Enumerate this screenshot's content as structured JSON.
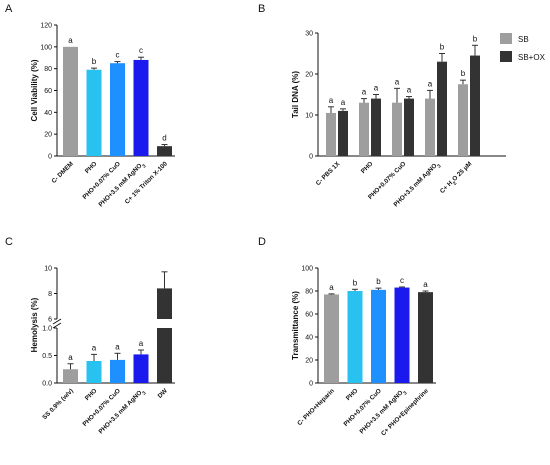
{
  "colors": {
    "gray": "#9e9e9e",
    "cyan": "#29c2f0",
    "sky": "#1e90ff",
    "blue": "#1a1aee",
    "dark": "#333333",
    "error": "#333333"
  },
  "chart_data": [
    {
      "panel": "A",
      "type": "bar",
      "ylabel": "Cell Viability (%)",
      "ylim": [
        0,
        120
      ],
      "yticks": [
        "0",
        "20",
        "40",
        "60",
        "80",
        "100",
        "120"
      ],
      "categories": [
        "C- DMEM",
        "PHO",
        "PHO+0.07% CuO",
        "PHO+3.5 mM AgNO3",
        "C+ 1% Triton X-100"
      ],
      "cat_html": [
        "C- DMEM",
        "PHO",
        "PHO+0.07% CuO",
        "PHO+3.5 mM AgNO<tspan baseline-shift='sub' font-size='5'>3</tspan>",
        "C+ 1% Triton X-100"
      ],
      "values": [
        100,
        79,
        85,
        88,
        9
      ],
      "errors": [
        0,
        1.5,
        1.5,
        2.5,
        1.5
      ],
      "letters": [
        "a",
        "b",
        "c",
        "c",
        "d"
      ],
      "colors": [
        "gray",
        "cyan",
        "sky",
        "blue",
        "dark"
      ]
    },
    {
      "panel": "B",
      "type": "grouped-bar",
      "ylabel": "Tail DNA (%)",
      "ylim": [
        0,
        30
      ],
      "yticks": [
        "0",
        "10",
        "20",
        "30"
      ],
      "categories": [
        "C- PBS 1X",
        "PHO",
        "PHO+0.07% CuO",
        "PHO+3.5 mM AgNO3",
        "C+ H2O 25 μM"
      ],
      "cat_html": [
        "C- PBS 1X",
        "PHO",
        "PHO+0.07% CuO",
        "PHO+3.5 mM AgNO<tspan baseline-shift='sub' font-size='5'>3</tspan>",
        "C+ H<tspan baseline-shift='sub' font-size='5'>2</tspan><tspan baseline-shift='0'>O 25 μM</tspan>"
      ],
      "series": [
        {
          "name": "SB",
          "values": [
            10.5,
            13,
            13,
            14,
            17.5
          ],
          "errors": [
            1.5,
            1,
            3.5,
            2,
            1
          ],
          "letters": [
            "a",
            "a",
            "a",
            "a",
            "b"
          ],
          "color": "gray"
        },
        {
          "name": "SB+OX",
          "values": [
            11,
            14,
            14,
            23,
            24.5
          ],
          "errors": [
            0.5,
            1,
            0.5,
            2,
            2.5
          ],
          "letters": [
            "a",
            "a",
            "a",
            "b",
            "b"
          ],
          "color": "dark"
        }
      ],
      "legend": "top-right"
    },
    {
      "panel": "C",
      "type": "bar",
      "ylabel": "Hemolysis (%)",
      "broken_axis": true,
      "ylim_lower": [
        0,
        1.0
      ],
      "ylim_upper": [
        6,
        10
      ],
      "yticks_lower": [
        "0.0",
        "0.5",
        "1.0"
      ],
      "yticks_upper": [
        "6",
        "8",
        "10"
      ],
      "categories": [
        "SS 0.9% (w/v)",
        "PHO",
        "PHO+0.07% CuO",
        "PHO+3.5 mM AgNO3",
        "DW"
      ],
      "cat_html": [
        "SS 0.9% (w/v)",
        "PHO",
        "PHO+0.07% CuO",
        "PHO+3.5 mM AgNO<tspan baseline-shift='sub' font-size='5'>3</tspan>",
        "DW"
      ],
      "values": [
        0.25,
        0.4,
        0.42,
        0.52,
        8.4
      ],
      "errors": [
        0.1,
        0.12,
        0.12,
        0.08,
        1.3
      ],
      "letters": [
        "a",
        "a",
        "a",
        "a",
        ""
      ],
      "colors": [
        "gray",
        "cyan",
        "sky",
        "blue",
        "dark"
      ]
    },
    {
      "panel": "D",
      "type": "bar",
      "ylabel": "Transmittance (%)",
      "ylim": [
        0,
        100
      ],
      "yticks": [
        "0",
        "20",
        "40",
        "60",
        "80",
        "100"
      ],
      "categories": [
        "C- PHO+Heparin",
        "PHO",
        "PHO+0.07% CuO",
        "PHO+3.5 mM AgNO3",
        "C+ PHO+Epinephrine"
      ],
      "cat_html": [
        "C- PHO+Heparin",
        "PHO",
        "PHO+0.07% CuO",
        "PHO+3.5 mM AgNO<tspan baseline-shift='sub' font-size='5'>3</tspan>",
        "C+ PHO+Epinephrine"
      ],
      "values": [
        77,
        80,
        81,
        83,
        79
      ],
      "errors": [
        0.5,
        1.5,
        1.5,
        0.5,
        1
      ],
      "letters": [
        "a",
        "b",
        "b",
        "c",
        "a"
      ],
      "colors": [
        "gray",
        "cyan",
        "sky",
        "blue",
        "dark"
      ]
    }
  ]
}
